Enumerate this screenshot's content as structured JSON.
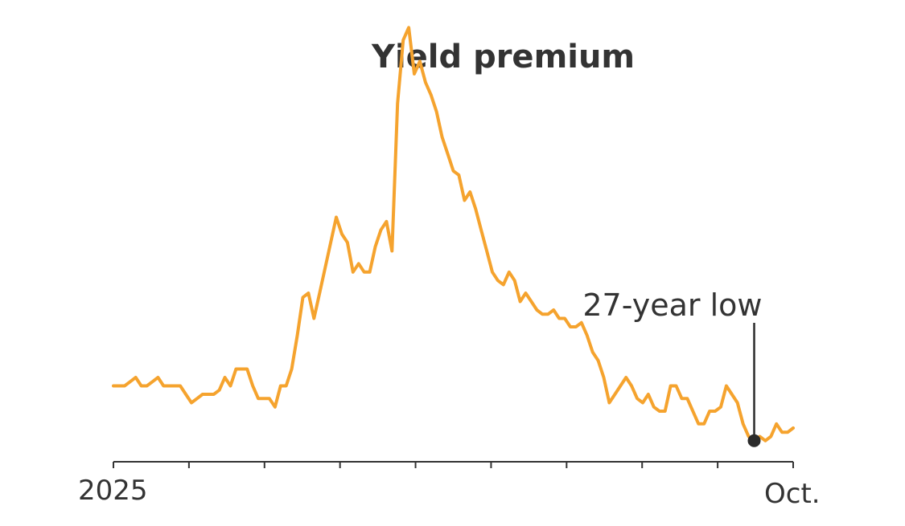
{
  "chart_data": {
    "type": "line",
    "title": "Yield premium",
    "xlabel": "",
    "ylabel": "",
    "x_tick_labels": [
      "2025",
      "Oct."
    ],
    "grid": false,
    "legend": "none",
    "line_color": "#f5a32e",
    "axis_color": "#333333",
    "text_color": "#333333",
    "marker_color": "#2b2b2b",
    "series": [
      {
        "values": [
          0.18,
          0.18,
          0.18,
          0.19,
          0.2,
          0.18,
          0.18,
          0.19,
          0.2,
          0.18,
          0.18,
          0.18,
          0.18,
          0.16,
          0.14,
          0.15,
          0.16,
          0.16,
          0.16,
          0.17,
          0.2,
          0.18,
          0.22,
          0.22,
          0.22,
          0.18,
          0.15,
          0.15,
          0.15,
          0.13,
          0.18,
          0.18,
          0.22,
          0.3,
          0.39,
          0.4,
          0.34,
          0.4,
          0.46,
          0.52,
          0.58,
          0.54,
          0.52,
          0.45,
          0.47,
          0.45,
          0.45,
          0.51,
          0.55,
          0.57,
          0.5,
          0.85,
          1.0,
          1.03,
          0.92,
          0.95,
          0.9,
          0.87,
          0.83,
          0.77,
          0.73,
          0.69,
          0.68,
          0.62,
          0.64,
          0.6,
          0.55,
          0.5,
          0.45,
          0.43,
          0.42,
          0.45,
          0.43,
          0.38,
          0.4,
          0.38,
          0.36,
          0.35,
          0.35,
          0.36,
          0.34,
          0.34,
          0.32,
          0.32,
          0.33,
          0.3,
          0.26,
          0.24,
          0.2,
          0.14,
          0.16,
          0.18,
          0.2,
          0.18,
          0.15,
          0.14,
          0.16,
          0.13,
          0.12,
          0.12,
          0.18,
          0.18,
          0.15,
          0.15,
          0.12,
          0.09,
          0.09,
          0.12,
          0.12,
          0.13,
          0.18,
          0.16,
          0.14,
          0.09,
          0.06,
          0.05,
          0.06,
          0.05,
          0.06,
          0.09,
          0.07,
          0.07,
          0.08
        ]
      }
    ],
    "annotations": [
      {
        "text": "27-year low",
        "point_index": 115
      }
    ]
  }
}
